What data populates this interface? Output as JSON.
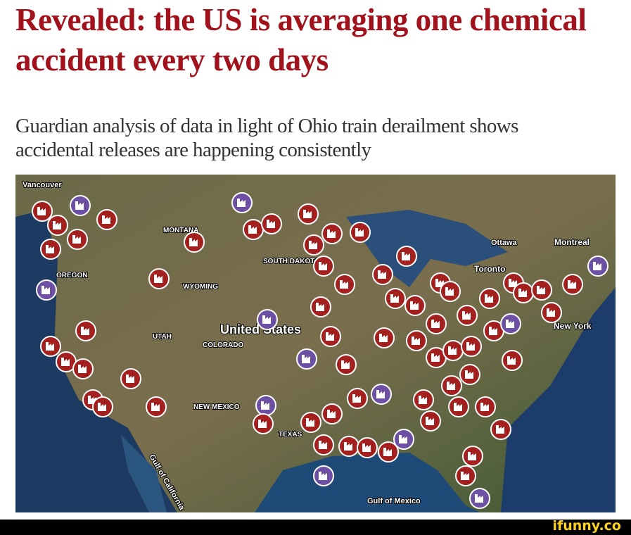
{
  "headline": "Revealed: the US is averaging one chemical accident every two days",
  "subheadline": "Guardian analysis of data in light of Ohio train derailment shows accidental releases are happening consistently",
  "map": {
    "labels": [
      "Vancouver",
      "MONTANA",
      "OREGON",
      "WYOMING",
      "SOUTH DAKOTA",
      "UTAH",
      "COLORADO",
      "NEW MEXICO",
      "TEXAS",
      "Ottawa",
      "Montreal",
      "Toronto",
      "New York",
      "United States",
      "Gulf of Mexico",
      "Gulf of California"
    ]
  },
  "footer": {
    "watermark": "ifunny.co"
  }
}
